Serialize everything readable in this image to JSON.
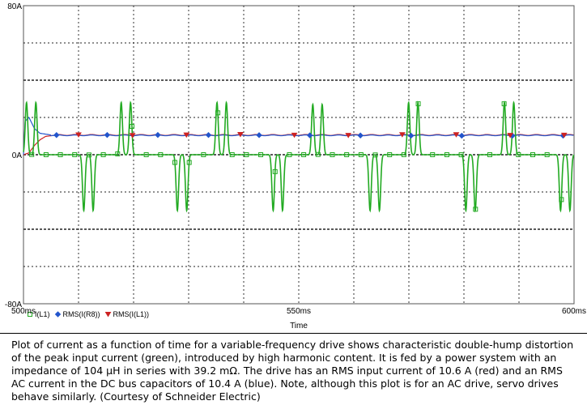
{
  "chart_data": {
    "type": "line",
    "title": "",
    "xlabel": "Time",
    "ylabel": "",
    "xlim": [
      500,
      600
    ],
    "ylim": [
      -80,
      80
    ],
    "x_ticks": [
      500,
      550,
      600
    ],
    "x_tick_labels": [
      "500ms",
      "550ms",
      "600ms"
    ],
    "y_ticks": [
      -80,
      0,
      80
    ],
    "y_tick_labels": [
      "-80A",
      "0A",
      "80A"
    ],
    "grid": true,
    "legend_position": "bottom-left",
    "series": [
      {
        "name": "I(L1)",
        "color": "#22aa22",
        "marker": "square",
        "description": "double-hump pulses",
        "pulses": [
          {
            "t": 501.4,
            "sign": 1,
            "peak": 28
          },
          {
            "t": 511.8,
            "sign": -1,
            "peak": 30
          },
          {
            "t": 518.6,
            "sign": 1,
            "peak": 28
          },
          {
            "t": 528.8,
            "sign": -1,
            "peak": 30
          },
          {
            "t": 536.0,
            "sign": 1,
            "peak": 28
          },
          {
            "t": 546.2,
            "sign": -1,
            "peak": 30
          },
          {
            "t": 553.4,
            "sign": 1,
            "peak": 27
          },
          {
            "t": 563.8,
            "sign": -1,
            "peak": 30
          },
          {
            "t": 570.8,
            "sign": 1,
            "peak": 28
          },
          {
            "t": 581.2,
            "sign": -1,
            "peak": 30
          },
          {
            "t": 588.2,
            "sign": 1,
            "peak": 28
          },
          {
            "t": 598.4,
            "sign": -1,
            "peak": 30
          }
        ]
      },
      {
        "name": "RMS(I(R8))",
        "color": "#2255cc",
        "marker": "diamond",
        "steady_value": 10.4,
        "startup": [
          [
            500.0,
            0
          ],
          [
            500.3,
            18
          ],
          [
            501.0,
            20
          ],
          [
            502.0,
            14
          ],
          [
            503.0,
            11.5
          ],
          [
            505.0,
            10.6
          ]
        ]
      },
      {
        "name": "RMS(I(L1))",
        "color": "#cc2222",
        "marker": "triangle",
        "steady_value": 10.6,
        "startup": [
          [
            500.0,
            0
          ],
          [
            501.0,
            1
          ],
          [
            502.0,
            5
          ],
          [
            503.0,
            8
          ],
          [
            504.0,
            9.8
          ],
          [
            506.0,
            10.6
          ]
        ]
      }
    ]
  },
  "caption": "Plot of current as a function of time for a variable-frequency drive shows characteristic double-hump distortion of the peak input current (green), introduced by high harmonic content. It is fed by a power system with an impedance of 104 µH in series with 39.2 mΩ. The drive has an RMS input current of 10.6 A (red) and an RMS AC current in the DC bus capacitors of 10.4 A (blue). Note, although this plot is for an AC drive, servo drives behave similarly. (Courtesy of Schneider Electric)"
}
